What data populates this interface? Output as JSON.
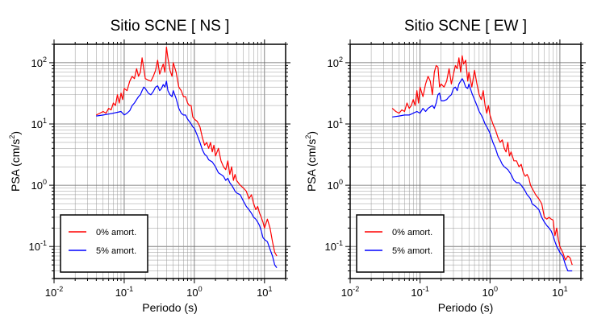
{
  "chart_data": [
    {
      "type": "line",
      "title": "Sitio SCNE [ NS ]",
      "xlabel": "Periodo (s)",
      "ylabel_main": "PSA (cm/s",
      "ylabel_sup": "2",
      "ylabel_close": ")",
      "xscale": "log",
      "yscale": "log",
      "xlim": [
        0.01,
        20
      ],
      "ylim": [
        0.03,
        200
      ],
      "grid": true,
      "legend_position": "bottom-left",
      "x_ticks": [
        {
          "base": "10",
          "exp": "-2"
        },
        {
          "base": "10",
          "exp": "-1"
        },
        {
          "base": "10",
          "exp": "0"
        },
        {
          "base": "10",
          "exp": "1"
        }
      ],
      "y_ticks": [
        {
          "base": "10",
          "exp": "-1"
        },
        {
          "base": "10",
          "exp": "0"
        },
        {
          "base": "10",
          "exp": "1"
        },
        {
          "base": "10",
          "exp": "2"
        }
      ],
      "series": [
        {
          "name": "0% amort.",
          "color": "#ff0000",
          "x": [
            0.04,
            0.045,
            0.05,
            0.055,
            0.06,
            0.065,
            0.07,
            0.075,
            0.08,
            0.085,
            0.09,
            0.095,
            0.1,
            0.11,
            0.12,
            0.13,
            0.14,
            0.15,
            0.16,
            0.17,
            0.18,
            0.19,
            0.2,
            0.22,
            0.24,
            0.26,
            0.28,
            0.3,
            0.32,
            0.34,
            0.36,
            0.38,
            0.4,
            0.42,
            0.45,
            0.48,
            0.5,
            0.55,
            0.6,
            0.65,
            0.7,
            0.75,
            0.8,
            0.85,
            0.9,
            0.95,
            1.0,
            1.1,
            1.2,
            1.3,
            1.4,
            1.5,
            1.6,
            1.7,
            1.8,
            1.9,
            2.0,
            2.2,
            2.4,
            2.6,
            2.8,
            3.0,
            3.2,
            3.4,
            3.6,
            3.8,
            4.0,
            4.5,
            5.0,
            5.5,
            6.0,
            6.5,
            7.0,
            7.5,
            8.0,
            8.5,
            9.0,
            9.5,
            10.0,
            11.0,
            12.0,
            13.0,
            14.0,
            15.0
          ],
          "y": [
            14,
            15,
            16,
            15,
            18,
            17,
            22,
            20,
            30,
            22,
            32,
            25,
            38,
            35,
            50,
            60,
            55,
            80,
            60,
            70,
            120,
            80,
            55,
            52,
            50,
            60,
            75,
            110,
            65,
            80,
            95,
            70,
            180,
            120,
            75,
            60,
            100,
            70,
            40,
            35,
            28,
            28,
            22,
            20,
            20,
            13,
            12,
            11,
            9,
            6,
            4.5,
            5,
            4,
            5,
            3.5,
            4.5,
            3,
            4,
            2.5,
            2,
            1.8,
            2.5,
            1.5,
            2,
            1.2,
            1.5,
            1.2,
            1,
            0.9,
            0.8,
            0.6,
            0.7,
            0.5,
            0.4,
            0.45,
            0.35,
            0.3,
            0.25,
            0.2,
            0.28,
            0.2,
            0.12,
            0.08,
            0.07
          ]
        },
        {
          "name": "5% amort.",
          "color": "#0000ff",
          "x": [
            0.04,
            0.05,
            0.06,
            0.07,
            0.08,
            0.09,
            0.1,
            0.11,
            0.12,
            0.13,
            0.14,
            0.15,
            0.16,
            0.17,
            0.18,
            0.19,
            0.2,
            0.22,
            0.24,
            0.26,
            0.28,
            0.3,
            0.32,
            0.34,
            0.36,
            0.38,
            0.4,
            0.42,
            0.45,
            0.48,
            0.5,
            0.55,
            0.6,
            0.65,
            0.7,
            0.75,
            0.8,
            0.85,
            0.9,
            0.95,
            1.0,
            1.1,
            1.2,
            1.3,
            1.4,
            1.5,
            1.6,
            1.8,
            2.0,
            2.2,
            2.4,
            2.6,
            2.8,
            3.0,
            3.2,
            3.4,
            3.6,
            3.8,
            4.0,
            4.5,
            5.0,
            5.5,
            6.0,
            6.5,
            7.0,
            7.5,
            8.0,
            8.5,
            9.0,
            9.5,
            10.0,
            11.0,
            12.0,
            13.0,
            14.0,
            15.0
          ],
          "y": [
            13.5,
            14,
            14.5,
            15,
            15.5,
            16,
            14,
            15,
            16.5,
            20,
            22,
            25,
            28,
            30,
            35,
            40,
            38,
            32,
            30,
            34,
            40,
            42,
            35,
            38,
            44,
            40,
            50,
            35,
            30,
            28,
            35,
            26,
            18,
            15,
            14,
            14,
            12,
            11,
            10,
            9,
            8.5,
            6.5,
            5,
            3.8,
            3.2,
            3,
            2.6,
            2.4,
            2,
            1.6,
            1.5,
            1.4,
            1.2,
            1.3,
            1.1,
            1,
            0.9,
            0.8,
            0.75,
            0.7,
            0.55,
            0.45,
            0.4,
            0.35,
            0.3,
            0.28,
            0.25,
            0.22,
            0.18,
            0.14,
            0.13,
            0.12,
            0.09,
            0.07,
            0.05,
            0.045
          ]
        }
      ]
    },
    {
      "type": "line",
      "title": "Sitio SCNE [ EW ]",
      "xlabel": "Periodo (s)",
      "ylabel_main": "PSA (cm/s",
      "ylabel_sup": "2",
      "ylabel_close": ")",
      "xscale": "log",
      "yscale": "log",
      "xlim": [
        0.01,
        20
      ],
      "ylim": [
        0.03,
        200
      ],
      "grid": true,
      "legend_position": "bottom-left",
      "x_ticks": [
        {
          "base": "10",
          "exp": "-2"
        },
        {
          "base": "10",
          "exp": "-1"
        },
        {
          "base": "10",
          "exp": "0"
        },
        {
          "base": "10",
          "exp": "1"
        }
      ],
      "y_ticks": [
        {
          "base": "10",
          "exp": "-1"
        },
        {
          "base": "10",
          "exp": "0"
        },
        {
          "base": "10",
          "exp": "1"
        },
        {
          "base": "10",
          "exp": "2"
        }
      ],
      "series": [
        {
          "name": "0% amort.",
          "color": "#ff0000",
          "x": [
            0.04,
            0.045,
            0.05,
            0.055,
            0.06,
            0.065,
            0.07,
            0.075,
            0.08,
            0.085,
            0.09,
            0.095,
            0.1,
            0.11,
            0.12,
            0.13,
            0.14,
            0.15,
            0.16,
            0.17,
            0.18,
            0.19,
            0.2,
            0.22,
            0.24,
            0.26,
            0.28,
            0.3,
            0.32,
            0.34,
            0.36,
            0.38,
            0.4,
            0.42,
            0.45,
            0.48,
            0.5,
            0.55,
            0.6,
            0.65,
            0.7,
            0.75,
            0.8,
            0.85,
            0.9,
            0.95,
            1.0,
            1.1,
            1.2,
            1.3,
            1.4,
            1.5,
            1.6,
            1.7,
            1.8,
            1.9,
            2.0,
            2.2,
            2.4,
            2.6,
            2.8,
            3.0,
            3.2,
            3.4,
            3.6,
            3.8,
            4.0,
            4.5,
            5.0,
            5.5,
            6.0,
            6.5,
            7.0,
            7.5,
            8.0,
            8.5,
            9.0,
            9.5,
            10.0,
            11.0,
            12.0,
            13.0,
            14.0,
            15.0
          ],
          "y": [
            18,
            16,
            15,
            17,
            16,
            22,
            18,
            20,
            25,
            20,
            35,
            22,
            40,
            28,
            45,
            60,
            50,
            30,
            70,
            90,
            85,
            40,
            45,
            40,
            50,
            80,
            45,
            65,
            90,
            80,
            120,
            70,
            130,
            95,
            110,
            50,
            70,
            40,
            75,
            45,
            30,
            25,
            35,
            20,
            15,
            20,
            14,
            10,
            8,
            6,
            5,
            5.5,
            4,
            3.5,
            5,
            3,
            3.5,
            2.5,
            2.5,
            2,
            2.2,
            1.6,
            1.4,
            1.5,
            1.3,
            1,
            0.9,
            0.7,
            0.6,
            0.5,
            0.3,
            0.28,
            0.3,
            0.28,
            0.27,
            0.15,
            0.2,
            0.13,
            0.1,
            0.08,
            0.06,
            0.07,
            0.065,
            0.05
          ]
        },
        {
          "name": "5% amort.",
          "color": "#0000ff",
          "x": [
            0.04,
            0.05,
            0.06,
            0.07,
            0.08,
            0.09,
            0.1,
            0.11,
            0.12,
            0.13,
            0.14,
            0.15,
            0.16,
            0.17,
            0.18,
            0.19,
            0.2,
            0.22,
            0.24,
            0.26,
            0.28,
            0.3,
            0.32,
            0.34,
            0.36,
            0.38,
            0.4,
            0.42,
            0.45,
            0.48,
            0.5,
            0.55,
            0.6,
            0.65,
            0.7,
            0.75,
            0.8,
            0.85,
            0.9,
            0.95,
            1.0,
            1.1,
            1.2,
            1.3,
            1.4,
            1.5,
            1.6,
            1.8,
            2.0,
            2.2,
            2.4,
            2.6,
            2.8,
            3.0,
            3.2,
            3.4,
            3.6,
            3.8,
            4.0,
            4.5,
            5.0,
            5.5,
            6.0,
            6.5,
            7.0,
            7.5,
            8.0,
            8.5,
            9.0,
            9.5,
            10.0,
            11.0,
            12.0,
            13.0,
            14.0,
            15.0
          ],
          "y": [
            13,
            13.5,
            14,
            14,
            15,
            16,
            15,
            18,
            16,
            18,
            19,
            20,
            18,
            22,
            30,
            32,
            24,
            24,
            25,
            28,
            30,
            38,
            40,
            35,
            45,
            50,
            55,
            50,
            40,
            38,
            45,
            32,
            25,
            20,
            16,
            14,
            12,
            10,
            9,
            8,
            7,
            5,
            4,
            3,
            2.6,
            2.2,
            2,
            1.8,
            1.5,
            1.2,
            1.1,
            1.1,
            1,
            0.9,
            0.8,
            0.7,
            0.65,
            0.6,
            0.5,
            0.45,
            0.4,
            0.3,
            0.25,
            0.22,
            0.2,
            0.18,
            0.15,
            0.12,
            0.1,
            0.09,
            0.08,
            0.07,
            0.05,
            0.04,
            0.04,
            0.04
          ]
        }
      ]
    }
  ]
}
